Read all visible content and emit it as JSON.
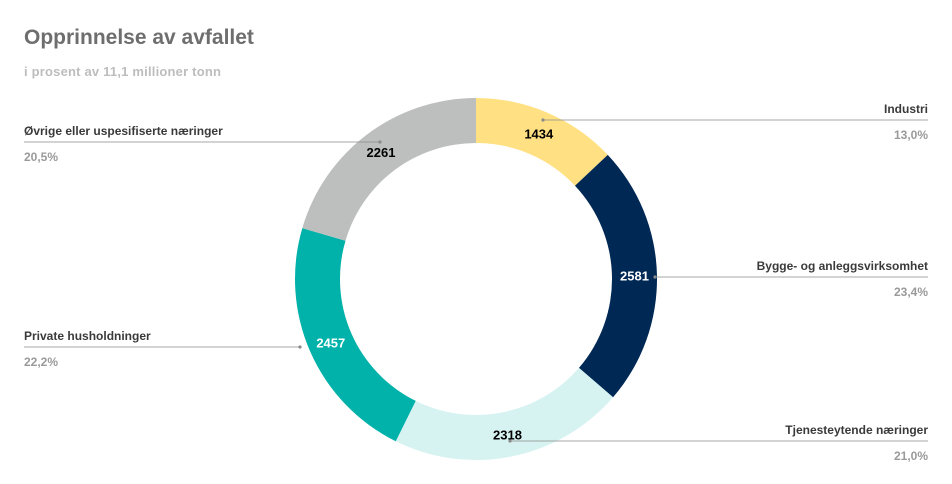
{
  "title": "Opprinnelse av avfallet",
  "subtitle": "i prosent av 11,1 millioner tonn",
  "chart_data": {
    "type": "pie",
    "donut": true,
    "title": "Opprinnelse av avfallet",
    "subtitle": "i prosent av 11,1 millioner tonn",
    "slices": [
      {
        "category": "Industri",
        "value": 1434,
        "percent": "13,0%",
        "color": "#ffe082",
        "value_color": "#000000",
        "side": "right"
      },
      {
        "category": "Bygge- og anleggsvirksomhet",
        "value": 2581,
        "percent": "23,4%",
        "color": "#002855",
        "value_color": "#ffffff",
        "side": "right"
      },
      {
        "category": "Tjenesteytende næringer",
        "value": 2318,
        "percent": "21,0%",
        "color": "#d6f3f1",
        "value_color": "#000000",
        "side": "right"
      },
      {
        "category": "Private husholdninger",
        "value": 2457,
        "percent": "22,2%",
        "color": "#00b2a9",
        "value_color": "#ffffff",
        "side": "left"
      },
      {
        "category": "Øvrige eller uspesifiserte næringer",
        "value": 2261,
        "percent": "20,5%",
        "color": "#bdbfbe",
        "value_color": "#000000",
        "side": "left"
      }
    ],
    "legend": "none"
  }
}
